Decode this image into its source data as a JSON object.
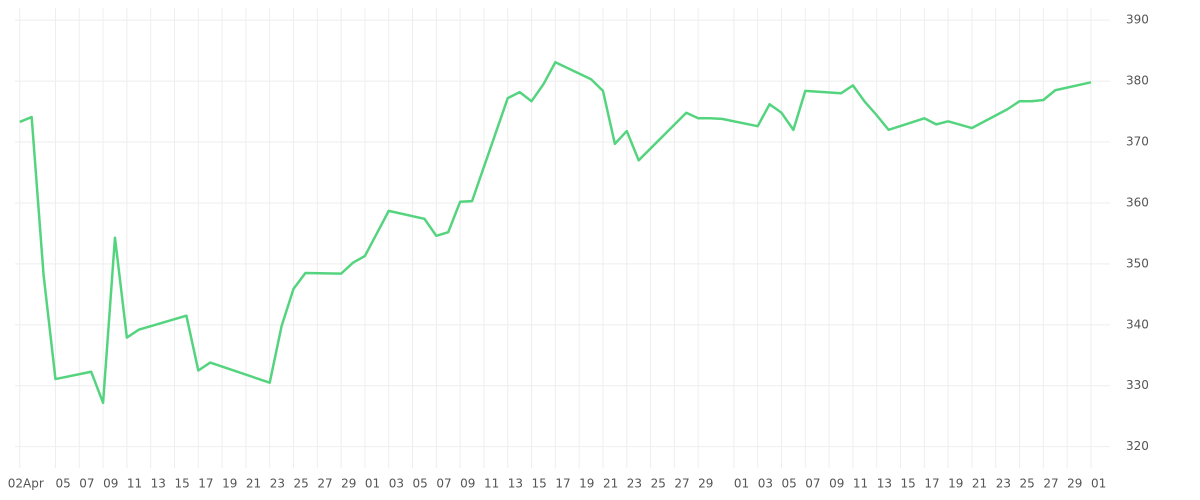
{
  "chart_data": {
    "type": "line",
    "x": [
      0,
      1,
      2,
      3,
      6,
      7,
      8,
      9,
      10,
      14,
      15,
      16,
      21,
      22,
      23,
      24,
      27,
      28,
      29,
      31,
      34,
      35,
      36,
      37,
      38,
      41,
      42,
      43,
      44,
      45,
      48,
      49,
      50,
      51,
      52,
      56,
      57,
      58,
      59,
      62,
      63,
      64,
      65,
      66,
      69,
      70,
      71,
      72,
      73,
      76,
      77,
      78,
      80,
      83,
      84,
      85,
      86,
      87,
      90
    ],
    "series": [
      {
        "color": "#55d47f",
        "values": [
          373.3,
          374.1,
          348.2,
          331.1,
          332.3,
          327.2,
          354.3,
          337.9,
          339.2,
          341.5,
          332.5,
          333.8,
          330.5,
          339.8,
          345.9,
          348.5,
          348.4,
          350.2,
          351.3,
          358.7,
          357.4,
          354.6,
          355.2,
          360.2,
          360.3,
          377.2,
          378.2,
          376.7,
          379.5,
          383.1,
          380.3,
          378.4,
          369.7,
          371.8,
          367.0,
          374.8,
          373.9,
          373.9,
          373.8,
          372.6,
          376.2,
          374.8,
          372.0,
          378.4,
          378.0,
          379.3,
          376.6,
          374.4,
          372.0,
          373.9,
          372.9,
          373.4,
          372.3,
          375.4,
          376.7,
          376.7,
          376.9,
          378.5,
          379.8
        ]
      }
    ],
    "xlim": [
      -0.4,
      91.6
    ],
    "xticks": [
      {
        "value": 0,
        "label": "02Apr"
      },
      {
        "value": 3,
        "label": "05"
      },
      {
        "value": 5,
        "label": "07"
      },
      {
        "value": 7,
        "label": "09"
      },
      {
        "value": 9,
        "label": "11"
      },
      {
        "value": 11,
        "label": "13"
      },
      {
        "value": 13,
        "label": "15"
      },
      {
        "value": 15,
        "label": "17"
      },
      {
        "value": 17,
        "label": "19"
      },
      {
        "value": 19,
        "label": "21"
      },
      {
        "value": 21,
        "label": "23"
      },
      {
        "value": 23,
        "label": "25"
      },
      {
        "value": 25,
        "label": "27"
      },
      {
        "value": 27,
        "label": "29"
      },
      {
        "value": 29,
        "label": "01"
      },
      {
        "value": 31,
        "label": "03"
      },
      {
        "value": 33,
        "label": "05"
      },
      {
        "value": 35,
        "label": "07"
      },
      {
        "value": 37,
        "label": "09"
      },
      {
        "value": 39,
        "label": "11"
      },
      {
        "value": 41,
        "label": "13"
      },
      {
        "value": 43,
        "label": "15"
      },
      {
        "value": 45,
        "label": "17"
      },
      {
        "value": 47,
        "label": "19"
      },
      {
        "value": 49,
        "label": "21"
      },
      {
        "value": 51,
        "label": "23"
      },
      {
        "value": 53,
        "label": "25"
      },
      {
        "value": 55,
        "label": "27"
      },
      {
        "value": 57,
        "label": "29"
      },
      {
        "value": 60,
        "label": "01"
      },
      {
        "value": 62,
        "label": "03"
      },
      {
        "value": 64,
        "label": "05"
      },
      {
        "value": 66,
        "label": "07"
      },
      {
        "value": 68,
        "label": "09"
      },
      {
        "value": 70,
        "label": "11"
      },
      {
        "value": 72,
        "label": "13"
      },
      {
        "value": 74,
        "label": "15"
      },
      {
        "value": 76,
        "label": "17"
      },
      {
        "value": 78,
        "label": "19"
      },
      {
        "value": 80,
        "label": "21"
      },
      {
        "value": 82,
        "label": "23"
      },
      {
        "value": 84,
        "label": "25"
      },
      {
        "value": 86,
        "label": "27"
      },
      {
        "value": 88,
        "label": "29"
      },
      {
        "value": 90,
        "label": "01"
      }
    ],
    "ylim": [
      316.5,
      392
    ],
    "yticks": [
      320,
      330,
      340,
      350,
      360,
      370,
      380,
      390
    ],
    "grid": true
  }
}
